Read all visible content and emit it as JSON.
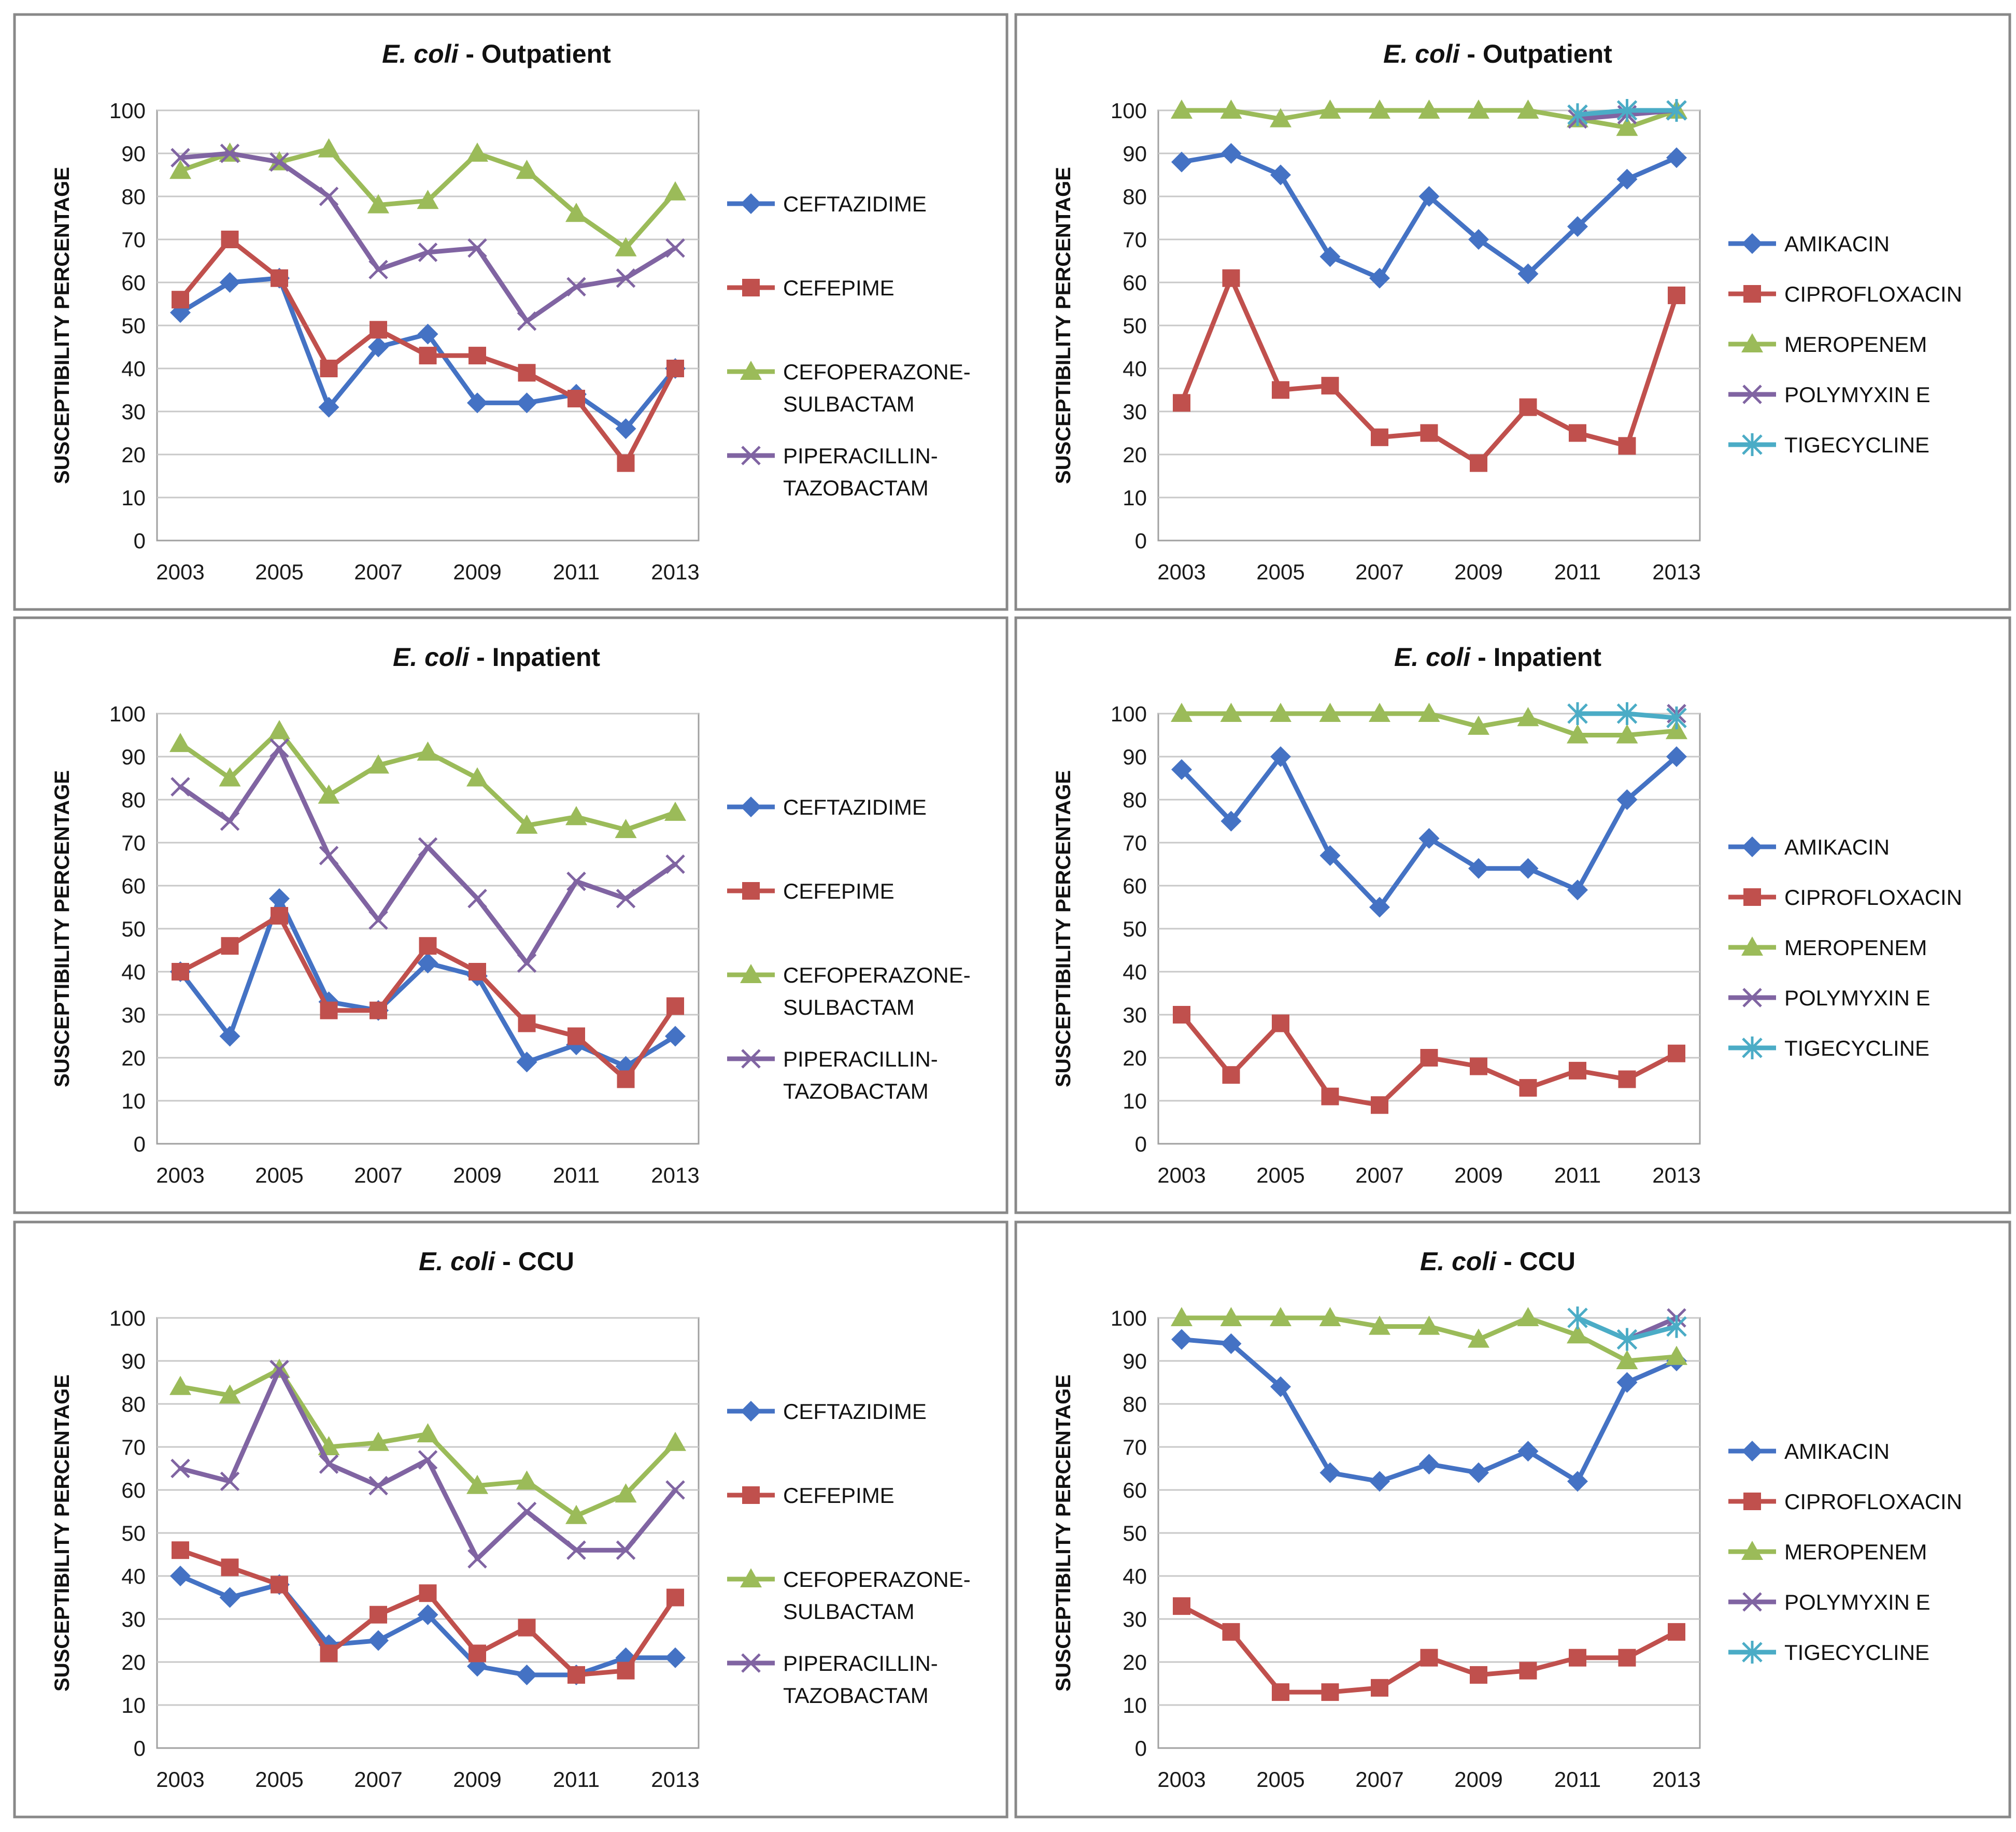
{
  "colors": {
    "blue": "#4472C4",
    "red": "#C0504D",
    "green": "#9BBB59",
    "purple": "#8064A2",
    "cyan": "#4BACC6"
  },
  "chart_data": [
    {
      "type": "line",
      "title": "E. coli - Outpatient",
      "title_italic": "E. coli",
      "title_rest": " - Outpatient",
      "ylabel": "SUSCEPTIBILITY PERCENTAGE",
      "xlabel": "",
      "ylim": [
        0,
        100
      ],
      "yticks": [
        0,
        10,
        20,
        30,
        40,
        50,
        60,
        70,
        80,
        90,
        100
      ],
      "x": [
        2003,
        2004,
        2005,
        2006,
        2007,
        2008,
        2009,
        2010,
        2011,
        2012,
        2013
      ],
      "xtick_labels": [
        "2003",
        "2005",
        "2007",
        "2009",
        "2011",
        "2013"
      ],
      "series": [
        {
          "name": "CEFTAZIDIME",
          "legend_lines": [
            "CEFTAZIDIME"
          ],
          "color": "blue",
          "marker": "diamond",
          "values": [
            53,
            60,
            61,
            31,
            45,
            48,
            32,
            32,
            34,
            26,
            40
          ]
        },
        {
          "name": "CEFEPIME",
          "legend_lines": [
            "CEFEPIME"
          ],
          "color": "red",
          "marker": "square",
          "values": [
            56,
            70,
            61,
            40,
            49,
            43,
            43,
            39,
            33,
            18,
            40
          ]
        },
        {
          "name": "CEFOPERAZONE-SULBACTAM",
          "legend_lines": [
            "CEFOPERAZONE-",
            "SULBACTAM"
          ],
          "color": "green",
          "marker": "triangle",
          "values": [
            86,
            90,
            88,
            91,
            78,
            79,
            90,
            86,
            76,
            68,
            81
          ]
        },
        {
          "name": "PIPERACILLIN-TAZOBACTAM",
          "legend_lines": [
            "PIPERACILLIN-",
            "TAZOBACTAM"
          ],
          "color": "purple",
          "marker": "x",
          "values": [
            89,
            90,
            88,
            80,
            63,
            67,
            68,
            51,
            59,
            61,
            68
          ]
        }
      ]
    },
    {
      "type": "line",
      "title": "E. coli - Outpatient",
      "title_italic": "E. coli",
      "title_rest": " - Outpatient",
      "ylabel": "SUSCEPTIBILITY PERCENTAGE",
      "xlabel": "",
      "ylim": [
        0,
        100
      ],
      "yticks": [
        0,
        10,
        20,
        30,
        40,
        50,
        60,
        70,
        80,
        90,
        100
      ],
      "x": [
        2003,
        2004,
        2005,
        2006,
        2007,
        2008,
        2009,
        2010,
        2011,
        2012,
        2013
      ],
      "xtick_labels": [
        "2003",
        "2005",
        "2007",
        "2009",
        "2011",
        "2013"
      ],
      "series": [
        {
          "name": "AMIKACIN",
          "legend_lines": [
            "AMIKACIN"
          ],
          "color": "blue",
          "marker": "diamond",
          "values": [
            88,
            90,
            85,
            66,
            61,
            80,
            70,
            62,
            73,
            84,
            89
          ]
        },
        {
          "name": "CIPROFLOXACIN",
          "legend_lines": [
            "CIPROFLOXACIN"
          ],
          "color": "red",
          "marker": "square",
          "values": [
            32,
            61,
            35,
            36,
            24,
            25,
            18,
            31,
            25,
            22,
            57
          ]
        },
        {
          "name": "MEROPENEM",
          "legend_lines": [
            "MEROPENEM"
          ],
          "color": "green",
          "marker": "triangle",
          "values": [
            100,
            100,
            98,
            100,
            100,
            100,
            100,
            100,
            98,
            96,
            100
          ]
        },
        {
          "name": "POLYMYXIN E",
          "legend_lines": [
            "POLYMYXIN E"
          ],
          "color": "purple",
          "marker": "x",
          "values": [
            null,
            null,
            null,
            null,
            null,
            null,
            null,
            null,
            98,
            99,
            100
          ]
        },
        {
          "name": "TIGECYCLINE",
          "legend_lines": [
            "TIGECYCLINE"
          ],
          "color": "cyan",
          "marker": "star",
          "values": [
            null,
            null,
            null,
            null,
            null,
            null,
            null,
            null,
            99,
            100,
            100
          ]
        }
      ]
    },
    {
      "type": "line",
      "title": "E. coli - Inpatient",
      "title_italic": "E. coli",
      "title_rest": " - Inpatient",
      "ylabel": "SUSCEPTIBILITY PERCENTAGE",
      "xlabel": "",
      "ylim": [
        0,
        100
      ],
      "yticks": [
        0,
        10,
        20,
        30,
        40,
        50,
        60,
        70,
        80,
        90,
        100
      ],
      "x": [
        2003,
        2004,
        2005,
        2006,
        2007,
        2008,
        2009,
        2010,
        2011,
        2012,
        2013
      ],
      "xtick_labels": [
        "2003",
        "2005",
        "2007",
        "2009",
        "2011",
        "2013"
      ],
      "series": [
        {
          "name": "CEFTAZIDIME",
          "legend_lines": [
            "CEFTAZIDIME"
          ],
          "color": "blue",
          "marker": "diamond",
          "values": [
            40,
            25,
            57,
            33,
            31,
            42,
            39,
            19,
            23,
            18,
            25
          ]
        },
        {
          "name": "CEFEPIME",
          "legend_lines": [
            "CEFEPIME"
          ],
          "color": "red",
          "marker": "square",
          "values": [
            40,
            46,
            53,
            31,
            31,
            46,
            40,
            28,
            25,
            15,
            32
          ]
        },
        {
          "name": "CEFOPERAZONE-SULBACTAM",
          "legend_lines": [
            "CEFOPERAZONE-",
            "SULBACTAM"
          ],
          "color": "green",
          "marker": "triangle",
          "values": [
            93,
            85,
            96,
            81,
            88,
            91,
            85,
            74,
            76,
            73,
            77
          ]
        },
        {
          "name": "PIPERACILLIN-TAZOBACTAM",
          "legend_lines": [
            "PIPERACILLIN-",
            "TAZOBACTAM"
          ],
          "color": "purple",
          "marker": "x",
          "values": [
            83,
            75,
            92,
            67,
            52,
            69,
            57,
            42,
            61,
            57,
            65
          ]
        }
      ]
    },
    {
      "type": "line",
      "title": "E. coli - Inpatient",
      "title_italic": "E. coli",
      "title_rest": " - Inpatient",
      "ylabel": "SUSCEPTIBILITY PERCENTAGE",
      "xlabel": "",
      "ylim": [
        0,
        100
      ],
      "yticks": [
        0,
        10,
        20,
        30,
        40,
        50,
        60,
        70,
        80,
        90,
        100
      ],
      "x": [
        2003,
        2004,
        2005,
        2006,
        2007,
        2008,
        2009,
        2010,
        2011,
        2012,
        2013
      ],
      "xtick_labels": [
        "2003",
        "2005",
        "2007",
        "2009",
        "2011",
        "2013"
      ],
      "series": [
        {
          "name": "AMIKACIN",
          "legend_lines": [
            "AMIKACIN"
          ],
          "color": "blue",
          "marker": "diamond",
          "values": [
            87,
            75,
            90,
            67,
            55,
            71,
            64,
            64,
            59,
            80,
            90
          ]
        },
        {
          "name": "CIPROFLOXACIN",
          "legend_lines": [
            "CIPROFLOXACIN"
          ],
          "color": "red",
          "marker": "square",
          "values": [
            30,
            16,
            28,
            11,
            9,
            20,
            18,
            13,
            17,
            15,
            21
          ]
        },
        {
          "name": "MEROPENEM",
          "legend_lines": [
            "MEROPENEM"
          ],
          "color": "green",
          "marker": "triangle",
          "values": [
            100,
            100,
            100,
            100,
            100,
            100,
            97,
            99,
            95,
            95,
            96
          ]
        },
        {
          "name": "POLYMYXIN E",
          "legend_lines": [
            "POLYMYXIN E"
          ],
          "color": "purple",
          "marker": "x",
          "values": [
            null,
            null,
            null,
            null,
            null,
            null,
            null,
            null,
            null,
            null,
            100
          ]
        },
        {
          "name": "TIGECYCLINE",
          "legend_lines": [
            "TIGECYCLINE"
          ],
          "color": "cyan",
          "marker": "star",
          "values": [
            null,
            null,
            null,
            null,
            null,
            null,
            null,
            null,
            100,
            100,
            99
          ]
        }
      ]
    },
    {
      "type": "line",
      "title": "E. coli - CCU",
      "title_italic": "E. coli",
      "title_rest": " - CCU",
      "ylabel": "SUSCEPTIBILITY PERCENTAGE",
      "xlabel": "",
      "ylim": [
        0,
        100
      ],
      "yticks": [
        0,
        10,
        20,
        30,
        40,
        50,
        60,
        70,
        80,
        90,
        100
      ],
      "x": [
        2003,
        2004,
        2005,
        2006,
        2007,
        2008,
        2009,
        2010,
        2011,
        2012,
        2013
      ],
      "xtick_labels": [
        "2003",
        "2005",
        "2007",
        "2009",
        "2011",
        "2013"
      ],
      "series": [
        {
          "name": "CEFTAZIDIME",
          "legend_lines": [
            "CEFTAZIDIME"
          ],
          "color": "blue",
          "marker": "diamond",
          "values": [
            40,
            35,
            38,
            24,
            25,
            31,
            19,
            17,
            17,
            21,
            21
          ]
        },
        {
          "name": "CEFEPIME",
          "legend_lines": [
            "CEFEPIME"
          ],
          "color": "red",
          "marker": "square",
          "values": [
            46,
            42,
            38,
            22,
            31,
            36,
            22,
            28,
            17,
            18,
            35
          ]
        },
        {
          "name": "CEFOPERAZONE-SULBACTAM",
          "legend_lines": [
            "CEFOPERAZONE-",
            "SULBACTAM"
          ],
          "color": "green",
          "marker": "triangle",
          "values": [
            84,
            82,
            88,
            70,
            71,
            73,
            61,
            62,
            54,
            59,
            71
          ]
        },
        {
          "name": "PIPERACILLIN-TAZOBACTAM",
          "legend_lines": [
            "PIPERACILLIN-",
            "TAZOBACTAM"
          ],
          "color": "purple",
          "marker": "x",
          "values": [
            65,
            62,
            88,
            66,
            61,
            67,
            44,
            55,
            46,
            46,
            60
          ]
        }
      ]
    },
    {
      "type": "line",
      "title": "E. coli - CCU",
      "title_italic": "E. coli",
      "title_rest": " - CCU",
      "ylabel": "SUSCEPTIBILITY PERCENTAGE",
      "xlabel": "",
      "ylim": [
        0,
        100
      ],
      "yticks": [
        0,
        10,
        20,
        30,
        40,
        50,
        60,
        70,
        80,
        90,
        100
      ],
      "x": [
        2003,
        2004,
        2005,
        2006,
        2007,
        2008,
        2009,
        2010,
        2011,
        2012,
        2013
      ],
      "xtick_labels": [
        "2003",
        "2005",
        "2007",
        "2009",
        "2011",
        "2013"
      ],
      "series": [
        {
          "name": "AMIKACIN",
          "legend_lines": [
            "AMIKACIN"
          ],
          "color": "blue",
          "marker": "diamond",
          "values": [
            95,
            94,
            84,
            64,
            62,
            66,
            64,
            69,
            62,
            85,
            90
          ]
        },
        {
          "name": "CIPROFLOXACIN",
          "legend_lines": [
            "CIPROFLOXACIN"
          ],
          "color": "red",
          "marker": "square",
          "values": [
            33,
            27,
            13,
            13,
            14,
            21,
            17,
            18,
            21,
            21,
            27
          ]
        },
        {
          "name": "MEROPENEM",
          "legend_lines": [
            "MEROPENEM"
          ],
          "color": "green",
          "marker": "triangle",
          "values": [
            100,
            100,
            100,
            100,
            98,
            98,
            95,
            100,
            96,
            90,
            91
          ]
        },
        {
          "name": "POLYMYXIN E",
          "legend_lines": [
            "POLYMYXIN E"
          ],
          "color": "purple",
          "marker": "x",
          "values": [
            null,
            null,
            null,
            null,
            null,
            null,
            null,
            null,
            null,
            95,
            100
          ]
        },
        {
          "name": "TIGECYCLINE",
          "legend_lines": [
            "TIGECYCLINE"
          ],
          "color": "cyan",
          "marker": "star",
          "values": [
            null,
            null,
            null,
            null,
            null,
            null,
            null,
            null,
            100,
            95,
            98
          ]
        }
      ]
    }
  ]
}
